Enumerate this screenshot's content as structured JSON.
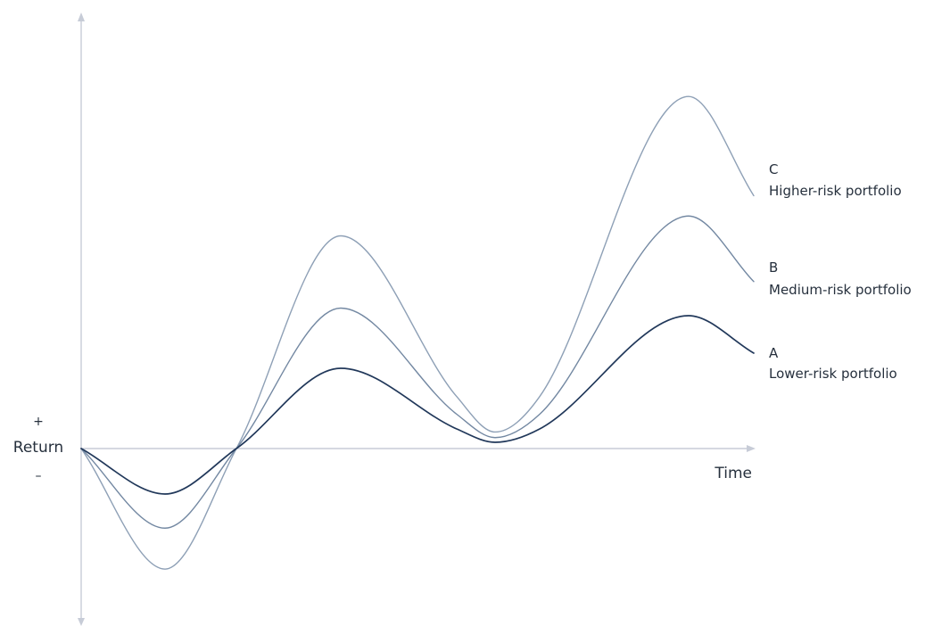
{
  "axes": {
    "y_label": "Return",
    "y_plus": "+",
    "y_minus": "–",
    "x_label": "Time"
  },
  "series": [
    {
      "letter": "C",
      "name": "Higher-risk portfolio",
      "color": "#8ea0b6",
      "amplitude": 2.65
    },
    {
      "letter": "B",
      "name": "Medium-risk portfolio",
      "color": "#7388a2",
      "amplitude": 1.75
    },
    {
      "letter": "A",
      "name": "Lower-risk portfolio",
      "color": "#21385a",
      "amplitude": 1.0
    }
  ]
}
